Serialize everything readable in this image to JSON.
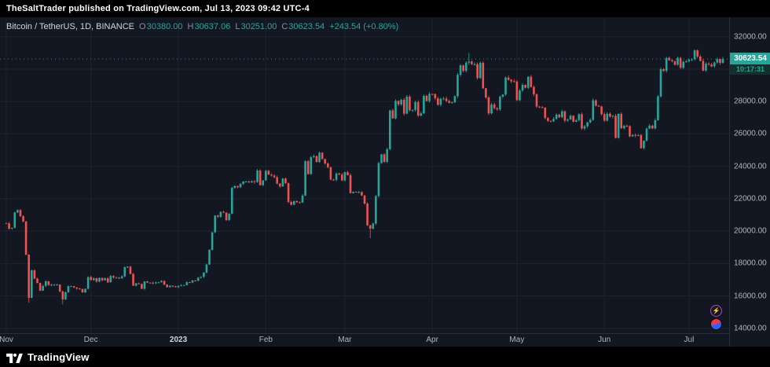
{
  "attribution": {
    "text": "TheSaltTrader published on TradingView.com, Jul 13, 2023 09:42 UTC-4"
  },
  "legend": {
    "symbol": "Bitcoin / TetherUS, 1D, BINANCE",
    "o_label": "O",
    "o": "30380.00",
    "h_label": "H",
    "h": "30637.06",
    "l_label": "L",
    "l": "30251.00",
    "c_label": "C",
    "c": "30623.54",
    "change": "+243.54 (+0.80%)"
  },
  "price_scale": {
    "current_price": "30623.54",
    "countdown": "10:17:31"
  },
  "footer": {
    "brand": "TradingView"
  },
  "icons": {
    "boost": "lightning-icon",
    "reaction": "reaction-badge-icon"
  },
  "colors": {
    "up": "#26a69a",
    "down": "#ef5350",
    "grid": "rgba(42,46,57,0.55)",
    "badge": "#26a69a",
    "background": "#131722"
  },
  "chart_data": {
    "type": "candlestick",
    "title": "Bitcoin / TetherUS, 1D, BINANCE",
    "timeframe": "1D",
    "start_date": "2022-11-01",
    "end_date": "2023-07-13",
    "first_open": 20500,
    "y_min": 13700,
    "y_max": 33200,
    "closes": [
      20480,
      20150,
      20200,
      21150,
      21300,
      20920,
      20600,
      18550,
      15880,
      17580,
      17070,
      16800,
      16330,
      16620,
      16900,
      16670,
      16690,
      16700,
      16700,
      16280,
      15780,
      16230,
      16600,
      16600,
      16520,
      16460,
      16430,
      16220,
      16440,
      17170,
      16980,
      17090,
      16890,
      17110,
      16970,
      17090,
      16840,
      17230,
      17130,
      17130,
      17090,
      17210,
      17780,
      17810,
      17360,
      16630,
      16780,
      16740,
      16440,
      16900,
      16820,
      16820,
      16780,
      16840,
      16840,
      16920,
      16700,
      16540,
      16630,
      16600,
      16540,
      16620,
      16670,
      16670,
      16860,
      16830,
      16950,
      16940,
      17130,
      17180,
      17440,
      17940,
      18850,
      19930,
      20960,
      20880,
      21190,
      21140,
      20680,
      21080,
      22670,
      22780,
      22710,
      22920,
      23060,
      23060,
      23010,
      23080,
      23030,
      23740,
      22840,
      23130,
      23720,
      23490,
      23430,
      23330,
      22930,
      22760,
      23250,
      22960,
      21800,
      21630,
      21860,
      21780,
      21770,
      22200,
      24320,
      23520,
      24570,
      24630,
      24270,
      24840,
      24450,
      24180,
      23940,
      23180,
      23160,
      23550,
      23490,
      23130,
      23640,
      23460,
      22350,
      22430,
      22410,
      22410,
      22200,
      21700,
      20360,
      20150,
      20470,
      22160,
      24200,
      24740,
      24280,
      25060,
      27450,
      26960,
      28040,
      27820,
      28110,
      27250,
      28300,
      27460,
      27480,
      27970,
      27130,
      27270,
      28350,
      28030,
      28470,
      28460,
      28200,
      27800,
      28170,
      28180,
      28040,
      27920,
      27950,
      28330,
      29650,
      30230,
      29890,
      30400,
      30470,
      30310,
      30310,
      29450,
      30390,
      28820,
      28250,
      27270,
      27820,
      27590,
      27510,
      28300,
      28430,
      29480,
      29340,
      29250,
      29230,
      28080,
      28680,
      29030,
      28850,
      29530,
      28900,
      28440,
      27690,
      27650,
      27620,
      26980,
      26800,
      26780,
      26930,
      27190,
      27030,
      27400,
      26820,
      26890,
      27120,
      26750,
      26850,
      27220,
      26330,
      26470,
      26710,
      26870,
      28080,
      27740,
      27700,
      27220,
      26820,
      27250,
      27070,
      27120,
      25750,
      27240,
      26350,
      26500,
      26480,
      25850,
      25940,
      25900,
      25930,
      25120,
      25580,
      26330,
      26510,
      26340,
      26850,
      28320,
      30000,
      29890,
      30690,
      30550,
      30480,
      30270,
      30690,
      30080,
      30450,
      30480,
      30590,
      30620,
      31160,
      30780,
      30510,
      29910,
      30340,
      30290,
      30170,
      30410,
      30620,
      30380,
      30623.54
    ],
    "wick_overrides": {
      "8": {
        "low": 15588
      },
      "20": {
        "low": 15480
      },
      "129": {
        "low": 19560
      },
      "164": {
        "high": 31000
      }
    },
    "x_ticks": [
      {
        "index": 0,
        "label": "Nov"
      },
      {
        "index": 30,
        "label": "Dec"
      },
      {
        "index": 61,
        "label": "2023",
        "year": true
      },
      {
        "index": 92,
        "label": "Feb"
      },
      {
        "index": 120,
        "label": "Mar"
      },
      {
        "index": 151,
        "label": "Apr"
      },
      {
        "index": 181,
        "label": "May"
      },
      {
        "index": 212,
        "label": "Jun"
      },
      {
        "index": 242,
        "label": "Jul"
      }
    ],
    "y_ticks": [
      {
        "value": 32000,
        "label": "32000.00"
      },
      {
        "value": 30000,
        "label": "30000.00"
      },
      {
        "value": 28000,
        "label": "28000.00"
      },
      {
        "value": 26000,
        "label": "26000.00"
      },
      {
        "value": 24000,
        "label": "24000.00"
      },
      {
        "value": 22000,
        "label": "22000.00"
      },
      {
        "value": 20000,
        "label": "20000.00"
      },
      {
        "value": 18000,
        "label": "18000.00"
      },
      {
        "value": 16000,
        "label": "16000.00"
      },
      {
        "value": 14000,
        "label": "14000.00"
      }
    ]
  }
}
